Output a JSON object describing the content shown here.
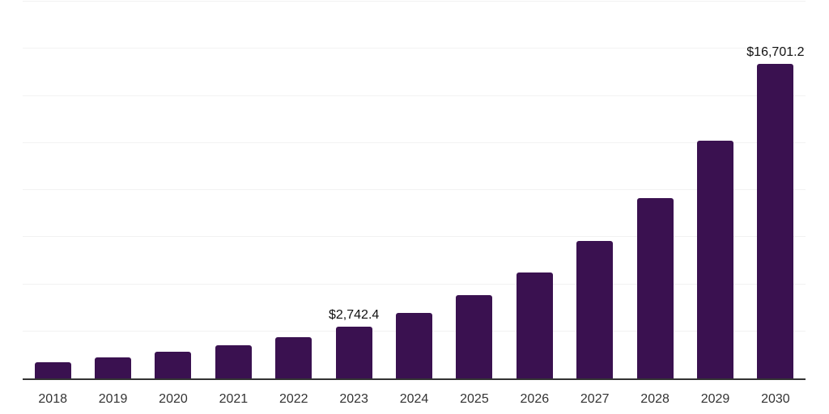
{
  "chart_data": {
    "type": "bar",
    "title": "",
    "xlabel": "",
    "ylabel": "",
    "categories": [
      "2018",
      "2019",
      "2020",
      "2021",
      "2022",
      "2023",
      "2024",
      "2025",
      "2026",
      "2027",
      "2028",
      "2029",
      "2030"
    ],
    "values": [
      860,
      1130,
      1400,
      1755,
      2180,
      2742.4,
      3460,
      4410,
      5640,
      7310,
      9560,
      12630,
      16701.2
    ],
    "value_labels": [
      "",
      "",
      "",
      "",
      "",
      "$2,742.4",
      "",
      "",
      "",
      "",
      "",
      "",
      "$16,701.2"
    ],
    "ylim": [
      0,
      20000
    ],
    "gridline_step": 2500,
    "grid": "horizontal",
    "legend_position": "none",
    "bar_color": "#3A1150",
    "axis_line_color": "#333333",
    "gridline_color": "#f2f2f2",
    "tick_label_color": "#333333",
    "value_label_color": "#111111",
    "background_color": "#ffffff"
  }
}
